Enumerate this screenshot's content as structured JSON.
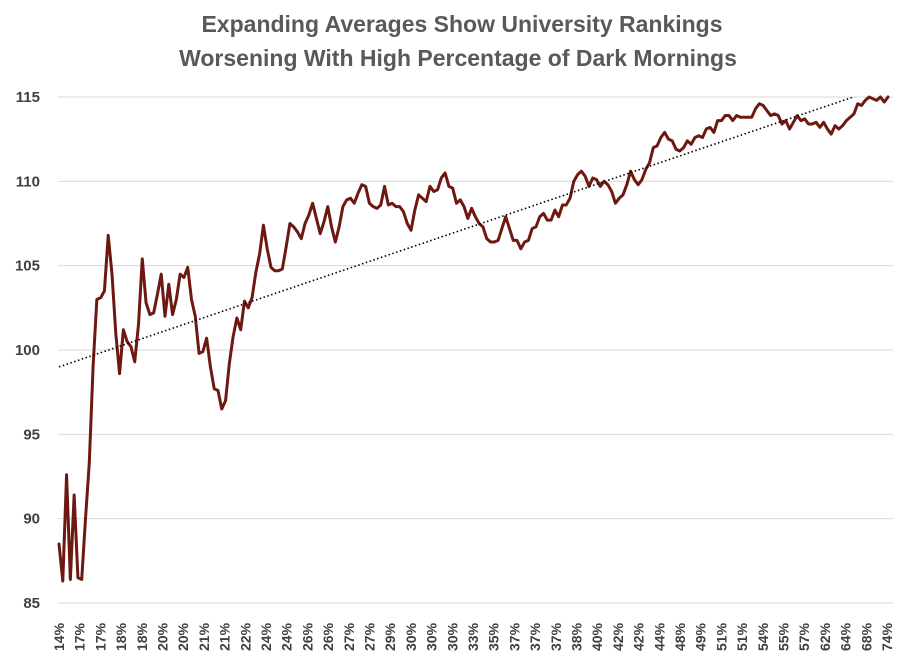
{
  "chart_data": {
    "type": "line",
    "title_lines": [
      "Expanding Averages Show University Rankings",
      "Worsening With High Percentage of Dark Mornings"
    ],
    "xlabel": "",
    "ylabel": "",
    "ylim": [
      85,
      115
    ],
    "yticks": [
      85,
      90,
      95,
      100,
      105,
      110,
      115
    ],
    "xtick_labels": [
      "14%",
      "17%",
      "17%",
      "18%",
      "18%",
      "20%",
      "20%",
      "21%",
      "21%",
      "22%",
      "24%",
      "24%",
      "26%",
      "26%",
      "27%",
      "27%",
      "29%",
      "30%",
      "30%",
      "30%",
      "33%",
      "35%",
      "37%",
      "37%",
      "37%",
      "38%",
      "40%",
      "42%",
      "42%",
      "44%",
      "48%",
      "49%",
      "51%",
      "51%",
      "54%",
      "55%",
      "57%",
      "62%",
      "64%",
      "68%",
      "74%"
    ],
    "grid": "horizontal",
    "legend": "none",
    "colors": {
      "series": "#6e1812",
      "trend": "#000000",
      "grid": "#d9d9d9",
      "text": "#595959"
    },
    "series": [
      {
        "style": "solid",
        "values": [
          88.5,
          86.3,
          92.6,
          86.4,
          91.4,
          86.5,
          86.4,
          90.0,
          93.3,
          99.0,
          103.0,
          103.1,
          103.5,
          106.8,
          104.5,
          101.0,
          98.6,
          101.2,
          100.5,
          100.2,
          99.3,
          101.5,
          105.4,
          102.8,
          102.1,
          102.2,
          103.3,
          104.5,
          102.0,
          103.9,
          102.1,
          103.0,
          104.5,
          104.3,
          104.9,
          103.0,
          102.0,
          99.8,
          99.9,
          100.7,
          99.0,
          97.7,
          97.6,
          96.5,
          97.0,
          99.2,
          100.8,
          101.9,
          101.2,
          102.9,
          102.5,
          103.1,
          104.6,
          105.7,
          107.4,
          106.0,
          104.9,
          104.7,
          104.7,
          104.8,
          106.1,
          107.5,
          107.3,
          107.0,
          106.6,
          107.5,
          108.0,
          108.7,
          107.8,
          106.9,
          107.6,
          108.5,
          107.3,
          106.4,
          107.3,
          108.5,
          108.9,
          109.0,
          108.7,
          109.3,
          109.8,
          109.7,
          108.7,
          108.5,
          108.4,
          108.6,
          109.7,
          108.6,
          108.7,
          108.5,
          108.5,
          108.2,
          107.5,
          107.1,
          108.3,
          109.2,
          109.0,
          108.8,
          109.7,
          109.4,
          109.5,
          110.2,
          110.5,
          109.7,
          109.6,
          108.7,
          108.9,
          108.5,
          107.8,
          108.4,
          107.9,
          107.5,
          107.3,
          106.6,
          106.4,
          106.4,
          106.5,
          107.2,
          107.9,
          107.2,
          106.5,
          106.5,
          106.0,
          106.4,
          106.5,
          107.2,
          107.3,
          107.9,
          108.1,
          107.7,
          107.7,
          108.3,
          107.9,
          108.6,
          108.6,
          109.0,
          110.0,
          110.4,
          110.6,
          110.3,
          109.7,
          110.2,
          110.1,
          109.7,
          110.0,
          109.8,
          109.4,
          108.7,
          109.0,
          109.2,
          109.8,
          110.6,
          110.1,
          109.8,
          110.1,
          110.7,
          111.1,
          112.0,
          112.1,
          112.6,
          112.9,
          112.5,
          112.4,
          111.9,
          111.8,
          112.0,
          112.4,
          112.2,
          112.6,
          112.7,
          112.6,
          113.1,
          113.2,
          112.9,
          113.6,
          113.6,
          113.9,
          113.9,
          113.6,
          113.9,
          113.8,
          113.8,
          113.8,
          113.8,
          114.3,
          114.6,
          114.5,
          114.2,
          113.9,
          114.0,
          113.9,
          113.4,
          113.6,
          113.1,
          113.5,
          113.9,
          113.6,
          113.7,
          113.4,
          113.4,
          113.5,
          113.2,
          113.5,
          113.1,
          112.8,
          113.3,
          113.1,
          113.3,
          113.6,
          113.8,
          114.0,
          114.6,
          114.5,
          114.8,
          115.0,
          114.9,
          114.8,
          115.0,
          114.7,
          115.0
        ]
      },
      {
        "style": "dotted",
        "x_fraction": [
          0.0,
          1.0
        ],
        "values": [
          99.0,
          115.7
        ]
      }
    ]
  }
}
